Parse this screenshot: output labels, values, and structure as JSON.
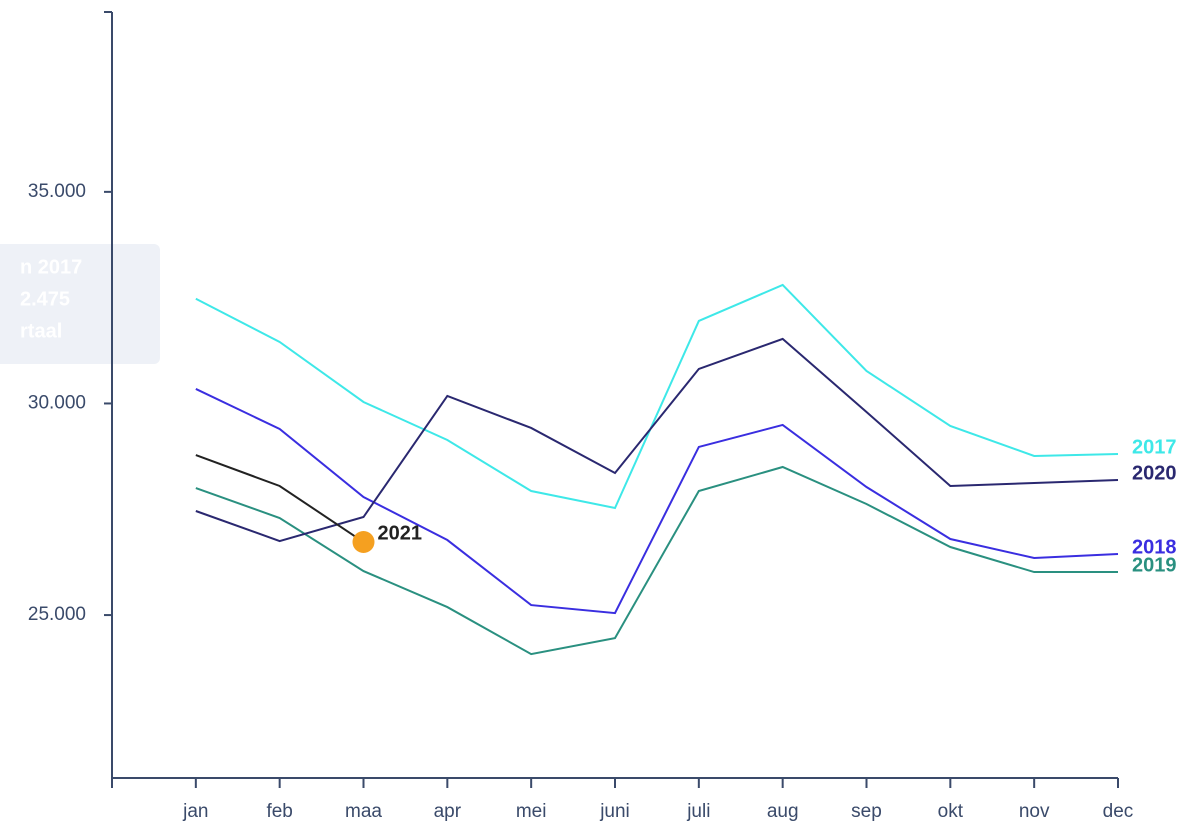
{
  "chart_data": {
    "type": "line",
    "categories": [
      "jan",
      "feb",
      "maa",
      "apr",
      "mei",
      "juni",
      "juli",
      "aug",
      "sep",
      "okt",
      "nov",
      "dec"
    ],
    "series": [
      {
        "name": "2017",
        "color": "#3ee8e8",
        "values": [
          32475,
          31454,
          30035,
          29137,
          27931,
          27530,
          31950,
          32801,
          30768,
          29468,
          28759,
          28806
        ]
      },
      {
        "name": "2018",
        "color": "#3a2ee0",
        "values": [
          30343,
          29397,
          27790,
          26773,
          25236,
          25047,
          28972,
          29492,
          28026,
          26797,
          26348,
          26442
        ]
      },
      {
        "name": "2019",
        "color": "#2a9080",
        "values": [
          28002,
          27293,
          26040,
          25189,
          24078,
          24456,
          27931,
          28499,
          27624,
          26608,
          26017,
          26017
        ]
      },
      {
        "name": "2020",
        "color": "#2a2870",
        "values": [
          27459,
          26749,
          27317,
          30177,
          29421,
          28357,
          30816,
          31525,
          29799,
          28050,
          28121,
          28191
        ]
      },
      {
        "name": "2021",
        "color": "#222222",
        "marker_color": "#f5a020",
        "values": [
          28782,
          28050,
          26726,
          null,
          null,
          null,
          null,
          null,
          null,
          null,
          null,
          null
        ]
      }
    ],
    "ylim": [
      21150,
      39250
    ],
    "yticks": [
      {
        "value": 25000,
        "label": "25.000"
      },
      {
        "value": 30000,
        "label": "30.000"
      },
      {
        "value": 35000,
        "label": "35.000"
      }
    ],
    "tooltip": [
      "n 2017",
      "2.475",
      "rtaal"
    ]
  }
}
